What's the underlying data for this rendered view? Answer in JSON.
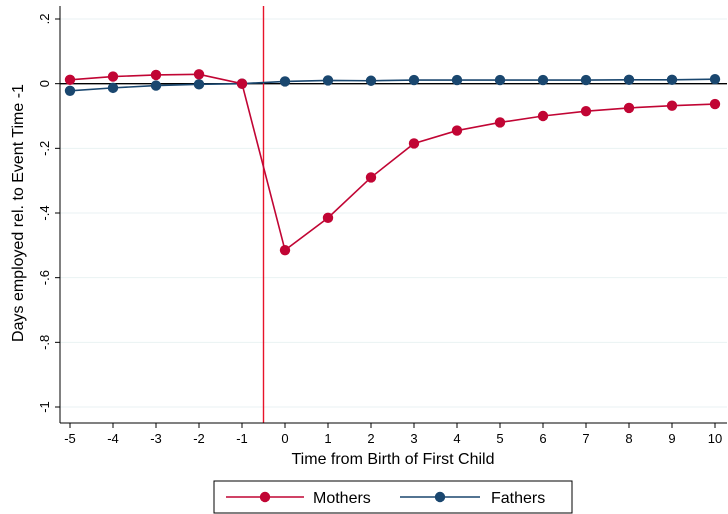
{
  "chart_data": {
    "type": "line",
    "xlabel": "Time from Birth of First Child",
    "ylabel": "Days employed rel. to Event Time -1",
    "x": [
      -5,
      -4,
      -3,
      -2,
      -1,
      0,
      1,
      2,
      3,
      4,
      5,
      6,
      7,
      8,
      9,
      10
    ],
    "xticks": [
      "-5",
      "-4",
      "-3",
      "-2",
      "-1",
      "0",
      "1",
      "2",
      "3",
      "4",
      "5",
      "6",
      "7",
      "8",
      "9",
      "10"
    ],
    "yticks": [
      {
        "value": 0.2,
        "label": ".2"
      },
      {
        "value": 0,
        "label": "0"
      },
      {
        "value": -0.2,
        "label": "-.2"
      },
      {
        "value": -0.4,
        "label": "-.4"
      },
      {
        "value": -0.6,
        "label": "-.6"
      },
      {
        "value": -0.8,
        "label": "-.8"
      },
      {
        "value": -1,
        "label": "-1"
      }
    ],
    "xlim": [
      -5,
      10
    ],
    "ylim": [
      -1,
      0.2
    ],
    "reference_lines": {
      "vertical_x": -0.5,
      "horizontal_y": 0
    },
    "grid": true,
    "legend_position": "bottom",
    "series": [
      {
        "name": "Mothers",
        "color": "#c10534",
        "values": [
          0.012,
          0.022,
          0.027,
          0.029,
          0,
          -0.515,
          -0.415,
          -0.29,
          -0.185,
          -0.145,
          -0.12,
          -0.1,
          -0.085,
          -0.075,
          -0.068,
          -0.063
        ]
      },
      {
        "name": "Fathers",
        "color": "#1a476f",
        "values": [
          -0.022,
          -0.013,
          -0.006,
          -0.002,
          0,
          0.007,
          0.01,
          0.009,
          0.011,
          0.011,
          0.011,
          0.011,
          0.011,
          0.012,
          0.012,
          0.014
        ]
      }
    ]
  },
  "colors": {
    "vline": "#e8132a",
    "zero_line": "#000000",
    "grid": "#eaf2f3"
  }
}
